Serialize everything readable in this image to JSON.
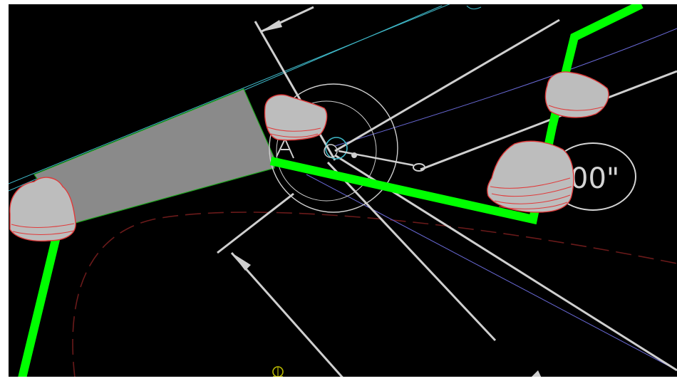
{
  "canvas": {
    "background": "#000000",
    "dimension_label": "00\"",
    "colors": {
      "boundary_green": "#00ff00",
      "paved_fill": "#8a8a8a",
      "paved_outline": "#1fa81f",
      "leader_white": "#cfcfcf",
      "curb_cyan": "#3fb8c8",
      "curve_blue": "#6a6ad8",
      "dashed_red": "#6a1a1a",
      "boulder_fill": "#bdbdbd",
      "boulder_outline": "#e03a3a",
      "tree_yellow": "#b8b800"
    },
    "icons": [
      "boulder-icon",
      "tree-marker-icon",
      "control-point-icon",
      "arrowhead-icon"
    ]
  }
}
